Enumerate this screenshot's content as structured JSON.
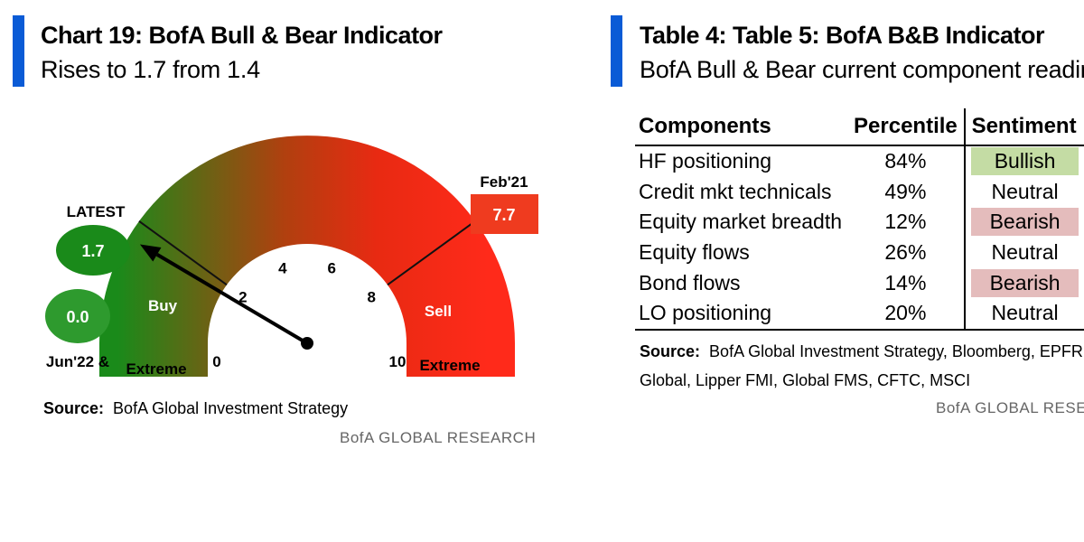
{
  "left": {
    "title": "Chart 19: BofA Bull & Bear Indicator",
    "subtitle": "Rises to 1.7 from 1.4",
    "source_label": "Source:",
    "source_text": "BofA Global Investment Strategy",
    "brand": "BofA GLOBAL RESEARCH"
  },
  "right": {
    "title": "Table 4: Table 5: BofA B&B Indicator",
    "subtitle": "BofA Bull & Bear current component readings",
    "source_label": "Source:",
    "source_line1": "BofA Global Investment Strategy, Bloomberg, EPFR",
    "source_line2": "Global, Lipper FMI, Global FMS, CFTC, MSCI",
    "brand": "BofA GLOBAL RESEARCH"
  },
  "chart_data": {
    "type": "gauge",
    "min": 0,
    "max": 10,
    "ticks": [
      "0",
      "2",
      "4",
      "6",
      "8",
      "10"
    ],
    "value": 1.7,
    "buy_threshold": 2,
    "sell_threshold": 8,
    "zones": [
      {
        "label": "Buy",
        "from": 0,
        "to": 2,
        "color": "#1f8a1f"
      },
      {
        "label": "Sell",
        "from": 8,
        "to": 10,
        "color": "#ee2a1a"
      }
    ],
    "end_labels": {
      "low": "Extreme",
      "high": "Extreme"
    },
    "callouts": [
      {
        "heading": "LATEST",
        "value": "1.7",
        "color": "#1a8a1a"
      },
      {
        "heading": "Jun'22 &",
        "value": "0.0",
        "color": "#2e9a2e"
      },
      {
        "heading": "Feb'21",
        "value": "7.7",
        "color": "#ef3b1f"
      }
    ]
  },
  "table": {
    "headers": [
      "Components",
      "Percentile",
      "Sentiment"
    ],
    "rows": [
      {
        "component": "HF positioning",
        "percentile": "84%",
        "sentiment": "Bullish",
        "color": "#c4dca4"
      },
      {
        "component": "Credit mkt technicals",
        "percentile": "49%",
        "sentiment": "Neutral",
        "color": ""
      },
      {
        "component": "Equity market breadth",
        "percentile": "12%",
        "sentiment": "Bearish",
        "color": "#e4bcbc"
      },
      {
        "component": "Equity flows",
        "percentile": "26%",
        "sentiment": "Neutral",
        "color": ""
      },
      {
        "component": "Bond flows",
        "percentile": "14%",
        "sentiment": "Bearish",
        "color": "#e4bcbc"
      },
      {
        "component": "LO positioning",
        "percentile": "20%",
        "sentiment": "Neutral",
        "color": ""
      }
    ]
  }
}
